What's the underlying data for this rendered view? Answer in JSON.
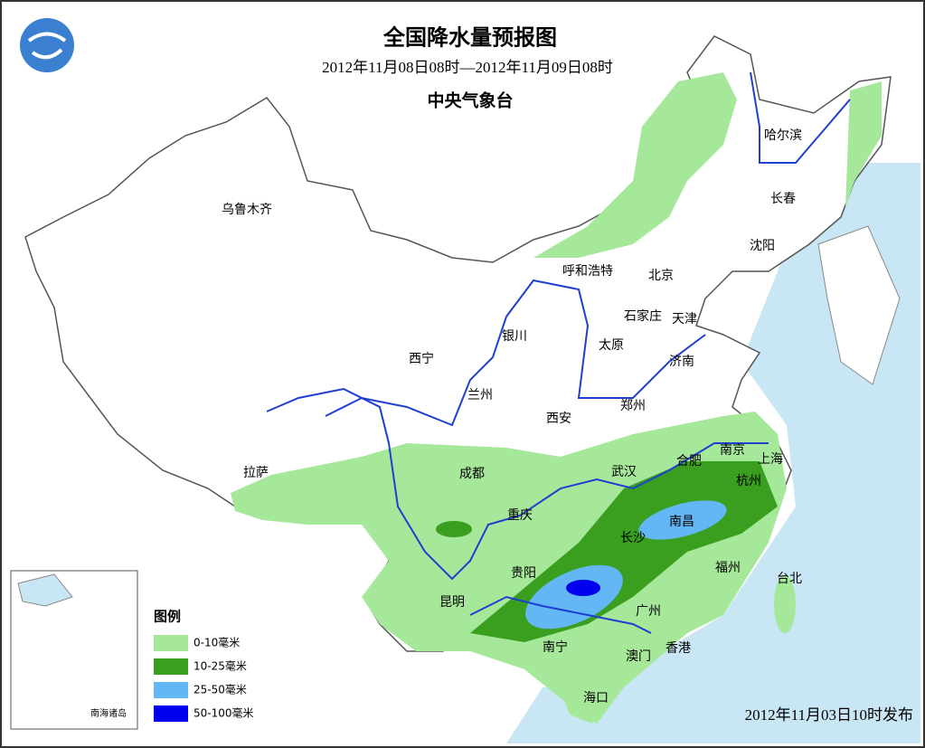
{
  "header": {
    "title": "全国降水量预报图",
    "period": "2012年11月08日08时—2012年11月09日08时",
    "issuer": "中央气象台"
  },
  "cities": [
    "乌鲁木齐",
    "哈尔滨",
    "长春",
    "沈阳",
    "呼和浩特",
    "北京",
    "石家庄",
    "天津",
    "太原",
    "济南",
    "银川",
    "西宁",
    "兰州",
    "西安",
    "郑州",
    "拉萨",
    "成都",
    "武汉",
    "合肥",
    "南京",
    "上海",
    "杭州",
    "重庆",
    "南昌",
    "长沙",
    "贵阳",
    "福州",
    "台北",
    "昆明",
    "广州",
    "南宁",
    "澳门",
    "香港",
    "海口"
  ],
  "legend": {
    "title": "图例",
    "items": [
      {
        "label": "0-10毫米",
        "color": "#a6e89a"
      },
      {
        "label": "10-25毫米",
        "color": "#3a9e1e"
      },
      {
        "label": "25-50毫米",
        "color": "#63b7f5"
      },
      {
        "label": "50-100毫米",
        "color": "#0000ee"
      }
    ]
  },
  "inset_label": "南海诸岛",
  "issued": "2012年11月03日10时发布"
}
